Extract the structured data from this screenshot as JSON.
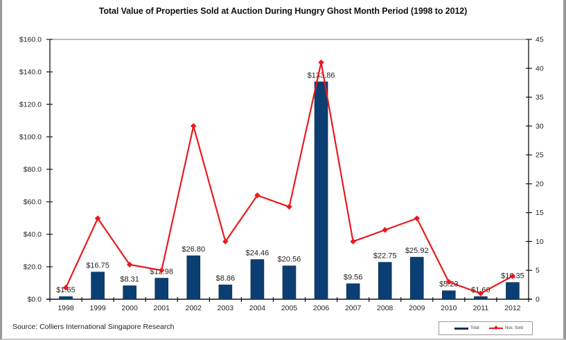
{
  "chart_data": {
    "type": "bar",
    "title": "Total Value of Properties Sold at Auction During Hungry Ghost Month Period (1998 to 2012)",
    "xlabel": "",
    "ylabel": "",
    "categories": [
      "1998",
      "1999",
      "2000",
      "2001",
      "2002",
      "2003",
      "2004",
      "2005",
      "2006",
      "2007",
      "2008",
      "2009",
      "2010",
      "2011",
      "2012"
    ],
    "series": [
      {
        "name": "Total",
        "type": "bar",
        "axis": "left",
        "color": "#0b3f73",
        "values": [
          1.65,
          16.75,
          8.31,
          12.98,
          26.8,
          8.86,
          24.46,
          20.56,
          133.86,
          9.56,
          22.75,
          25.92,
          5.23,
          1.66,
          10.35
        ],
        "labels": [
          "$1.65",
          "$16.75",
          "$8.31",
          "$12.98",
          "$26.80",
          "$8.86",
          "$24.46",
          "$20.56",
          "$133.86",
          "$9.56",
          "$22.75",
          "$25.92",
          "$5.23",
          "$1.66",
          "$10.35"
        ]
      },
      {
        "name": "Nos. Sold",
        "type": "line",
        "axis": "right",
        "color": "#e8191d",
        "values": [
          2,
          14,
          6,
          5,
          30,
          10,
          18,
          16,
          41,
          10,
          12,
          14,
          3,
          1,
          4
        ]
      }
    ],
    "y_left": {
      "ylim": [
        0,
        160
      ],
      "ticks": [
        0,
        20,
        40,
        60,
        80,
        100,
        120,
        140,
        160
      ],
      "tick_labels": [
        "$0.0",
        "$20.0",
        "$40.0",
        "$60.0",
        "$80.0",
        "$100.0",
        "$120.0",
        "$140.0",
        "$160.0"
      ]
    },
    "y_right": {
      "ylim": [
        0,
        45
      ],
      "ticks": [
        0,
        5,
        10,
        15,
        20,
        25,
        30,
        35,
        40,
        45
      ],
      "tick_labels": [
        "0",
        "5",
        "10",
        "15",
        "20",
        "25",
        "30",
        "35",
        "40",
        "45"
      ]
    },
    "grid": false,
    "legend": {
      "placement": "bottom-right",
      "entries": [
        "Total",
        "Nos. Sold"
      ]
    },
    "source": "Source:  Colliers International Singapore Research"
  }
}
